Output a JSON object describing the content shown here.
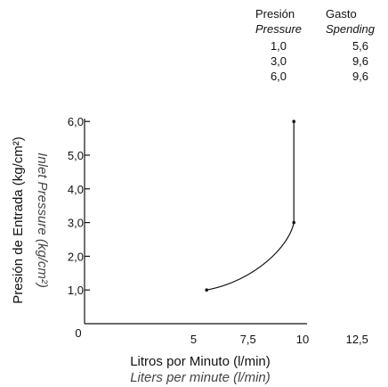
{
  "table": {
    "headers": [
      {
        "es": "Presión",
        "en": "Pressure"
      },
      {
        "es": "Gasto",
        "en": "Spending"
      }
    ],
    "rows": [
      {
        "pressure": "1,0",
        "spending": "5,6"
      },
      {
        "pressure": "3,0",
        "spending": "9,6"
      },
      {
        "pressure": "6,0",
        "spending": "9,6"
      }
    ]
  },
  "chart_data": {
    "type": "line",
    "title": "",
    "xlabel": "Litros  por Minuto (l/min)",
    "xlabel_en": "Liters per minute (l/min)",
    "ylabel": "Presión de Entrada (kg/cm²)",
    "ylabel_en": "Inlet Pressure  (kg/cm²)",
    "x_ticks": [
      "0",
      "5",
      "7,5",
      "10",
      "12,5"
    ],
    "y_ticks": [
      "1,0",
      "2,0",
      "3,0",
      "4,0",
      "5,0",
      "6,0"
    ],
    "xlim": [
      0,
      15
    ],
    "ylim": [
      0,
      6.3
    ],
    "grid": false,
    "series": [
      {
        "x": [
          5.6,
          9.6,
          9.6
        ],
        "y": [
          1.0,
          3.0,
          6.0
        ]
      }
    ]
  }
}
